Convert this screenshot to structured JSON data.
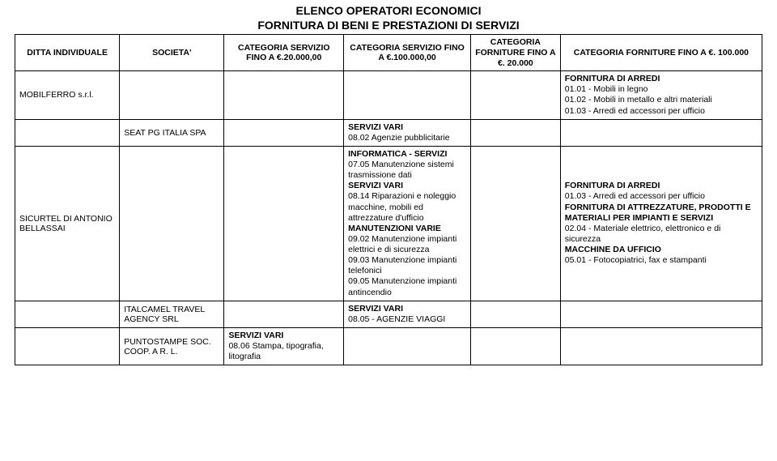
{
  "title_line1": "ELENCO OPERATORI ECONOMICI",
  "title_line2": "FORNITURA DI BENI E PRESTAZIONI DI SERVIZI",
  "columns": {
    "c0": "DITTA INDIVIDUALE",
    "c1": "SOCIETA'",
    "c2": "CATEGORIA SERVIZIO FINO A €.20.000,00",
    "c3": "CATEGORIA SERVIZIO FINO A €.100.000,00",
    "c4": "CATEGORIA FORNITURE FINO A €. 20.000",
    "c5": "CATEGORIA FORNITURE FINO A €. 100.000"
  },
  "rows": {
    "r0": {
      "ditta": "MOBILFERRO s.r.l.",
      "cat100": {
        "h1": "FORNITURA DI ARREDI",
        "l1": "01.01 -  Mobili in legno",
        "l2": "01.02 - Mobili in metallo e altri materiali",
        "l3": "01.03 - Arredi ed accessori per ufficio"
      }
    },
    "r1": {
      "societa": "SEAT PG ITALIA SPA",
      "serv100": {
        "h1": "SERVIZI VARI",
        "l1": "08.02 Agenzie pubblicitarie"
      }
    },
    "r2": {
      "ditta": "SICURTEL DI ANTONIO BELLASSAI",
      "serv100": {
        "h1": "INFORMATICA - SERVIZI",
        "l1": "07.05 Manutenzione sistemi trasmissione dati",
        "h2": "SERVIZI VARI",
        "l2": "08.14 Riparazioni e noleggio macchine, mobili ed attrezzature d'ufficio",
        "h3": "MANUTENZIONI VARIE",
        "l3": "09.02 Manutenzione impianti elettrici e di sicurezza",
        "l4": "09.03 Manutenzione impianti telefonici",
        "l5": "09.05 Manutenzione impianti antincendio"
      },
      "cat100": {
        "h1": "FORNITURA DI ARREDI",
        "l1": "01.03 - Arredi ed accessori per ufficio",
        "h2": "FORNITURA DI ATTREZZATURE, PRODOTTI E MATERIALI PER IMPIANTI E SERVIZI",
        "l2": "02.04 - Materiale elettrico, elettronico e di sicurezza",
        "h3": "MACCHINE DA UFFICIO",
        "l3": "05.01 - Fotocopiatrici, fax e stampanti"
      }
    },
    "r3": {
      "societa": "ITALCAMEL TRAVEL AGENCY SRL",
      "serv100": {
        "h1": "SERVIZI VARI",
        "l1": "08.05 - AGENZIE VIAGGI"
      }
    },
    "r4": {
      "societa": "PUNTOSTAMPE SOC. COOP. A R. L.",
      "serv20": {
        "h1": "SERVIZI VARI",
        "l1": "08.06 Stampa, tipografia, litografia"
      }
    }
  }
}
